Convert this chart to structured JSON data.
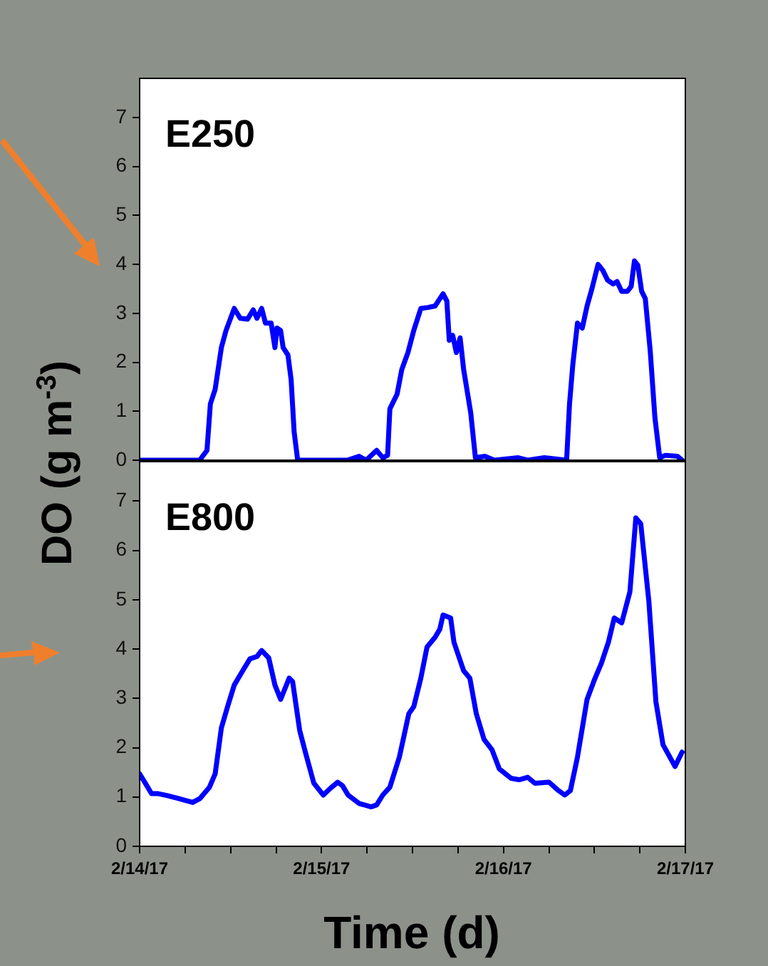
{
  "chart_data": [
    {
      "type": "line",
      "title": "E250",
      "ylabel": "DO (g m$^{-3}$)",
      "color": "#0000ff",
      "marker": "none",
      "tick_labels": "y",
      "xlim": [
        "--02-14",
        "--02-17"
      ],
      "ylim": [
        0,
        7.8
      ],
      "xticks": [
        {
          "value": "--02-14",
          "label": null
        },
        {
          "value": "--02-14T06:00",
          "label": null
        },
        {
          "value": "--02-14T12:00",
          "label": null
        },
        {
          "value": "--02-14T18:00",
          "label": null
        },
        {
          "value": "--02-15",
          "label": null
        },
        {
          "value": "--02-15T06:00",
          "label": null
        },
        {
          "value": "--02-15T12:00",
          "label": null
        },
        {
          "value": "--02-15T18:00",
          "label": null
        },
        {
          "value": "--02-16",
          "label": null
        },
        {
          "value": "--02-16T06:00",
          "label": null
        },
        {
          "value": "--02-16T12:00",
          "label": null
        },
        {
          "value": "--02-16T18:00",
          "label": null
        },
        {
          "value": "--02-17",
          "label": null
        }
      ],
      "yticks": [
        0,
        1,
        2,
        3,
        4,
        5,
        6,
        7
      ],
      "x": [
        "--02-14T00:00",
        "--02-14T07:55",
        "--02-14T08:53",
        "--02-14T09:20",
        "--02-14T09:58",
        "--02-14T10:47",
        "--02-14T11:24",
        "--02-14T12:29",
        "--02-14T13:16",
        "--02-14T14:14",
        "--02-14T14:59",
        "--02-14T15:29",
        "--02-14T16:06",
        "--02-14T16:36",
        "--02-14T17:21",
        "--02-14T17:51",
        "--02-14T18:07",
        "--02-14T18:36",
        "--02-14T18:56",
        "--02-14T19:34",
        "--02-14T19:59",
        "--02-14T20:23",
        "--02-14T20:51",
        "--02-15T03:23",
        "--02-15T04:57",
        "--02-15T05:53",
        "--02-15T07:16",
        "--02-15T08:05",
        "--02-15T08:43",
        "--02-15T09:01",
        "--02-15T09:58",
        "--02-15T10:35",
        "--02-15T11:24",
        "--02-15T12:10",
        "--02-15T13:06",
        "--02-15T14:02",
        "--02-15T14:59",
        "--02-15T15:24",
        "--02-15T16:02",
        "--02-15T16:32",
        "--02-15T16:51",
        "--02-15T17:18",
        "--02-15T17:47",
        "--02-15T18:17",
        "--02-15T18:45",
        "--02-15T19:41",
        "--02-15T20:18",
        "--02-15T21:33",
        "--02-15T22:48",
        "--02-16T01:57",
        "--02-16T03:12",
        "--02-16T05:24",
        "--02-16T08:20",
        "--02-16T08:43",
        "--02-16T09:09",
        "--02-16T09:46",
        "--02-16T10:24",
        "--02-16T11:02",
        "--02-16T11:40",
        "--02-16T12:29",
        "--02-16T13:06",
        "--02-16T13:44",
        "--02-16T14:28",
        "--02-16T14:59",
        "--02-16T15:36",
        "--02-16T16:21",
        "--02-16T16:51",
        "--02-16T17:17",
        "--02-16T17:44",
        "--02-16T18:14",
        "--02-16T18:43",
        "--02-16T19:22",
        "--02-16T19:59",
        "--02-16T20:37",
        "--02-16T21:22",
        "--02-16T22:57",
        "--02-16T23:34"
      ],
      "values": [
        0,
        0,
        0.2,
        1.15,
        1.45,
        2.3,
        2.65,
        3.1,
        2.9,
        2.88,
        3.07,
        2.9,
        3.1,
        2.8,
        2.8,
        2.3,
        2.7,
        2.65,
        2.3,
        2.15,
        1.65,
        0.58,
        0,
        0,
        0.08,
        0,
        0.2,
        0.05,
        0.1,
        1.05,
        1.35,
        1.85,
        2.2,
        2.65,
        3.1,
        3.12,
        3.15,
        3.25,
        3.4,
        3.25,
        2.45,
        2.55,
        2.2,
        2.5,
        1.85,
        0.97,
        0.05,
        0.08,
        0,
        0.05,
        0,
        0.05,
        0,
        1.15,
        1.95,
        2.8,
        2.7,
        3.15,
        3.5,
        4.0,
        3.88,
        3.68,
        3.6,
        3.65,
        3.45,
        3.45,
        3.55,
        4.07,
        3.98,
        3.45,
        3.3,
        2.23,
        0.87,
        0.05,
        0.1,
        0.08,
        0
      ]
    },
    {
      "type": "line",
      "title": "E800",
      "xlabel": "Time (d)",
      "color": "#0000ff",
      "marker": "none",
      "xlim": [
        "--02-14",
        "--02-17"
      ],
      "ylim": [
        0,
        7.8
      ],
      "xticks": [
        {
          "value": "--02-14",
          "label": "2/14/17"
        },
        {
          "value": "--02-14T06:00",
          "label": null
        },
        {
          "value": "--02-14T12:00",
          "label": null
        },
        {
          "value": "--02-14T18:00",
          "label": null
        },
        {
          "value": "--02-15",
          "label": "2/15/17"
        },
        {
          "value": "--02-15T06:00",
          "label": null
        },
        {
          "value": "--02-15T12:00",
          "label": null
        },
        {
          "value": "--02-15T18:00",
          "label": null
        },
        {
          "value": "--02-16",
          "label": "2/16/17"
        },
        {
          "value": "--02-16T06:00",
          "label": null
        },
        {
          "value": "--02-16T12:00",
          "label": null
        },
        {
          "value": "--02-16T18:00",
          "label": null
        },
        {
          "value": "--02-17",
          "label": "2/17/17"
        }
      ],
      "yticks": [
        0,
        1,
        2,
        3,
        4,
        5,
        6,
        7
      ],
      "x": [
        "--02-14T00:00",
        "--02-14T00:45",
        "--02-14T01:34",
        "--02-14T02:20",
        "--02-14T03:35",
        "--02-14T05:08",
        "--02-14T07:00",
        "--02-14T07:58",
        "--02-14T09:13",
        "--02-14T09:58",
        "--02-14T10:47",
        "--02-14T11:36",
        "--02-14T12:29",
        "--02-14T13:36",
        "--02-14T14:33",
        "--02-14T15:29",
        "--02-14T16:06",
        "--02-14T17:02",
        "--02-14T17:51",
        "--02-14T18:36",
        "--02-14T19:44",
        "--02-14T20:11",
        "--02-14T21:07",
        "--02-14T21:52",
        "--02-14T22:59",
        "--02-15T00:14",
        "--02-15T01:12",
        "--02-15T02:08",
        "--02-15T02:46",
        "--02-15T03:30",
        "--02-15T04:57",
        "--02-15T06:32",
        "--02-15T07:16",
        "--02-15T08:05",
        "--02-15T09:01",
        "--02-15T10:16",
        "--02-15T11:31",
        "--02-15T12:10",
        "--02-15T13:06",
        "--02-15T13:55",
        "--02-15T14:59",
        "--02-15T15:36",
        "--02-15T16:02",
        "--02-15T17:02",
        "--02-15T17:28",
        "--02-15T18:45",
        "--02-15T19:34",
        "--02-15T20:25",
        "--02-15T21:26",
        "--02-15T22:29",
        "--02-15T23:27",
        "--02-16T01:00",
        "--02-16T02:04",
        "--02-16T03:12",
        "--02-16T04:08",
        "--02-16T06:01",
        "--02-16T07:16",
        "--02-16T08:05",
        "--02-16T08:50",
        "--02-16T09:46",
        "--02-16T11:02",
        "--02-16T11:59",
        "--02-16T12:55",
        "--02-16T13:51",
        "--02-16T14:37",
        "--02-16T15:36",
        "--02-16T16:41",
        "--02-16T17:28",
        "--02-16T18:07",
        "--02-16T19:11",
        "--02-16T20:07",
        "--02-16T21:03",
        "--02-16T22:38",
        "--02-16T23:34"
      ],
      "values": [
        1.47,
        1.28,
        1.07,
        1.07,
        1.03,
        0.97,
        0.89,
        0.97,
        1.2,
        1.47,
        2.4,
        2.83,
        3.27,
        3.56,
        3.8,
        3.85,
        3.97,
        3.82,
        3.27,
        2.98,
        3.41,
        3.34,
        2.35,
        1.91,
        1.28,
        1.04,
        1.18,
        1.3,
        1.23,
        1.04,
        0.87,
        0.8,
        0.84,
        1.04,
        1.2,
        1.81,
        2.69,
        2.83,
        3.41,
        4.04,
        4.24,
        4.4,
        4.69,
        4.63,
        4.14,
        3.56,
        3.41,
        2.69,
        2.17,
        1.96,
        1.57,
        1.38,
        1.35,
        1.4,
        1.28,
        1.3,
        1.13,
        1.04,
        1.13,
        1.81,
        2.98,
        3.37,
        3.71,
        4.14,
        4.63,
        4.53,
        5.16,
        6.66,
        6.54,
        4.97,
        2.93,
        2.06,
        1.62,
        1.91
      ]
    }
  ]
}
